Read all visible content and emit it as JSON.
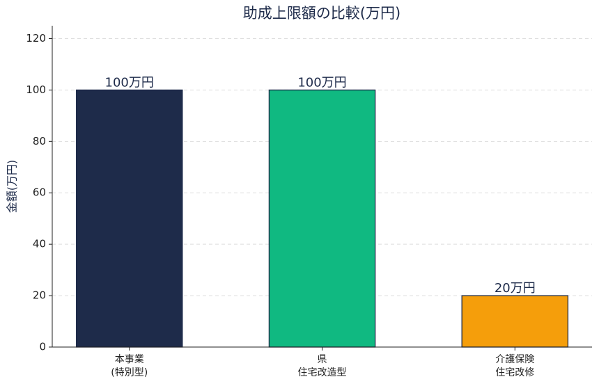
{
  "chart_data": {
    "type": "bar",
    "title": "助成上限額の比較(万円)",
    "y_label": "金額(万円)",
    "categories": [
      "本事業\n(特別型)",
      "県\n住宅改造型",
      "介護保険\n住宅改修"
    ],
    "values": [
      100,
      100,
      20
    ],
    "value_labels": [
      "100万円",
      "100万円",
      "20万円"
    ],
    "colors": [
      "#1e2b4a",
      "#10b981",
      "#f59e0b"
    ],
    "edge_color": "#1e2b4a",
    "ylim": [
      0,
      125
    ],
    "yticks": [
      0,
      20,
      40,
      60,
      80,
      100,
      120
    ],
    "grid": true
  }
}
